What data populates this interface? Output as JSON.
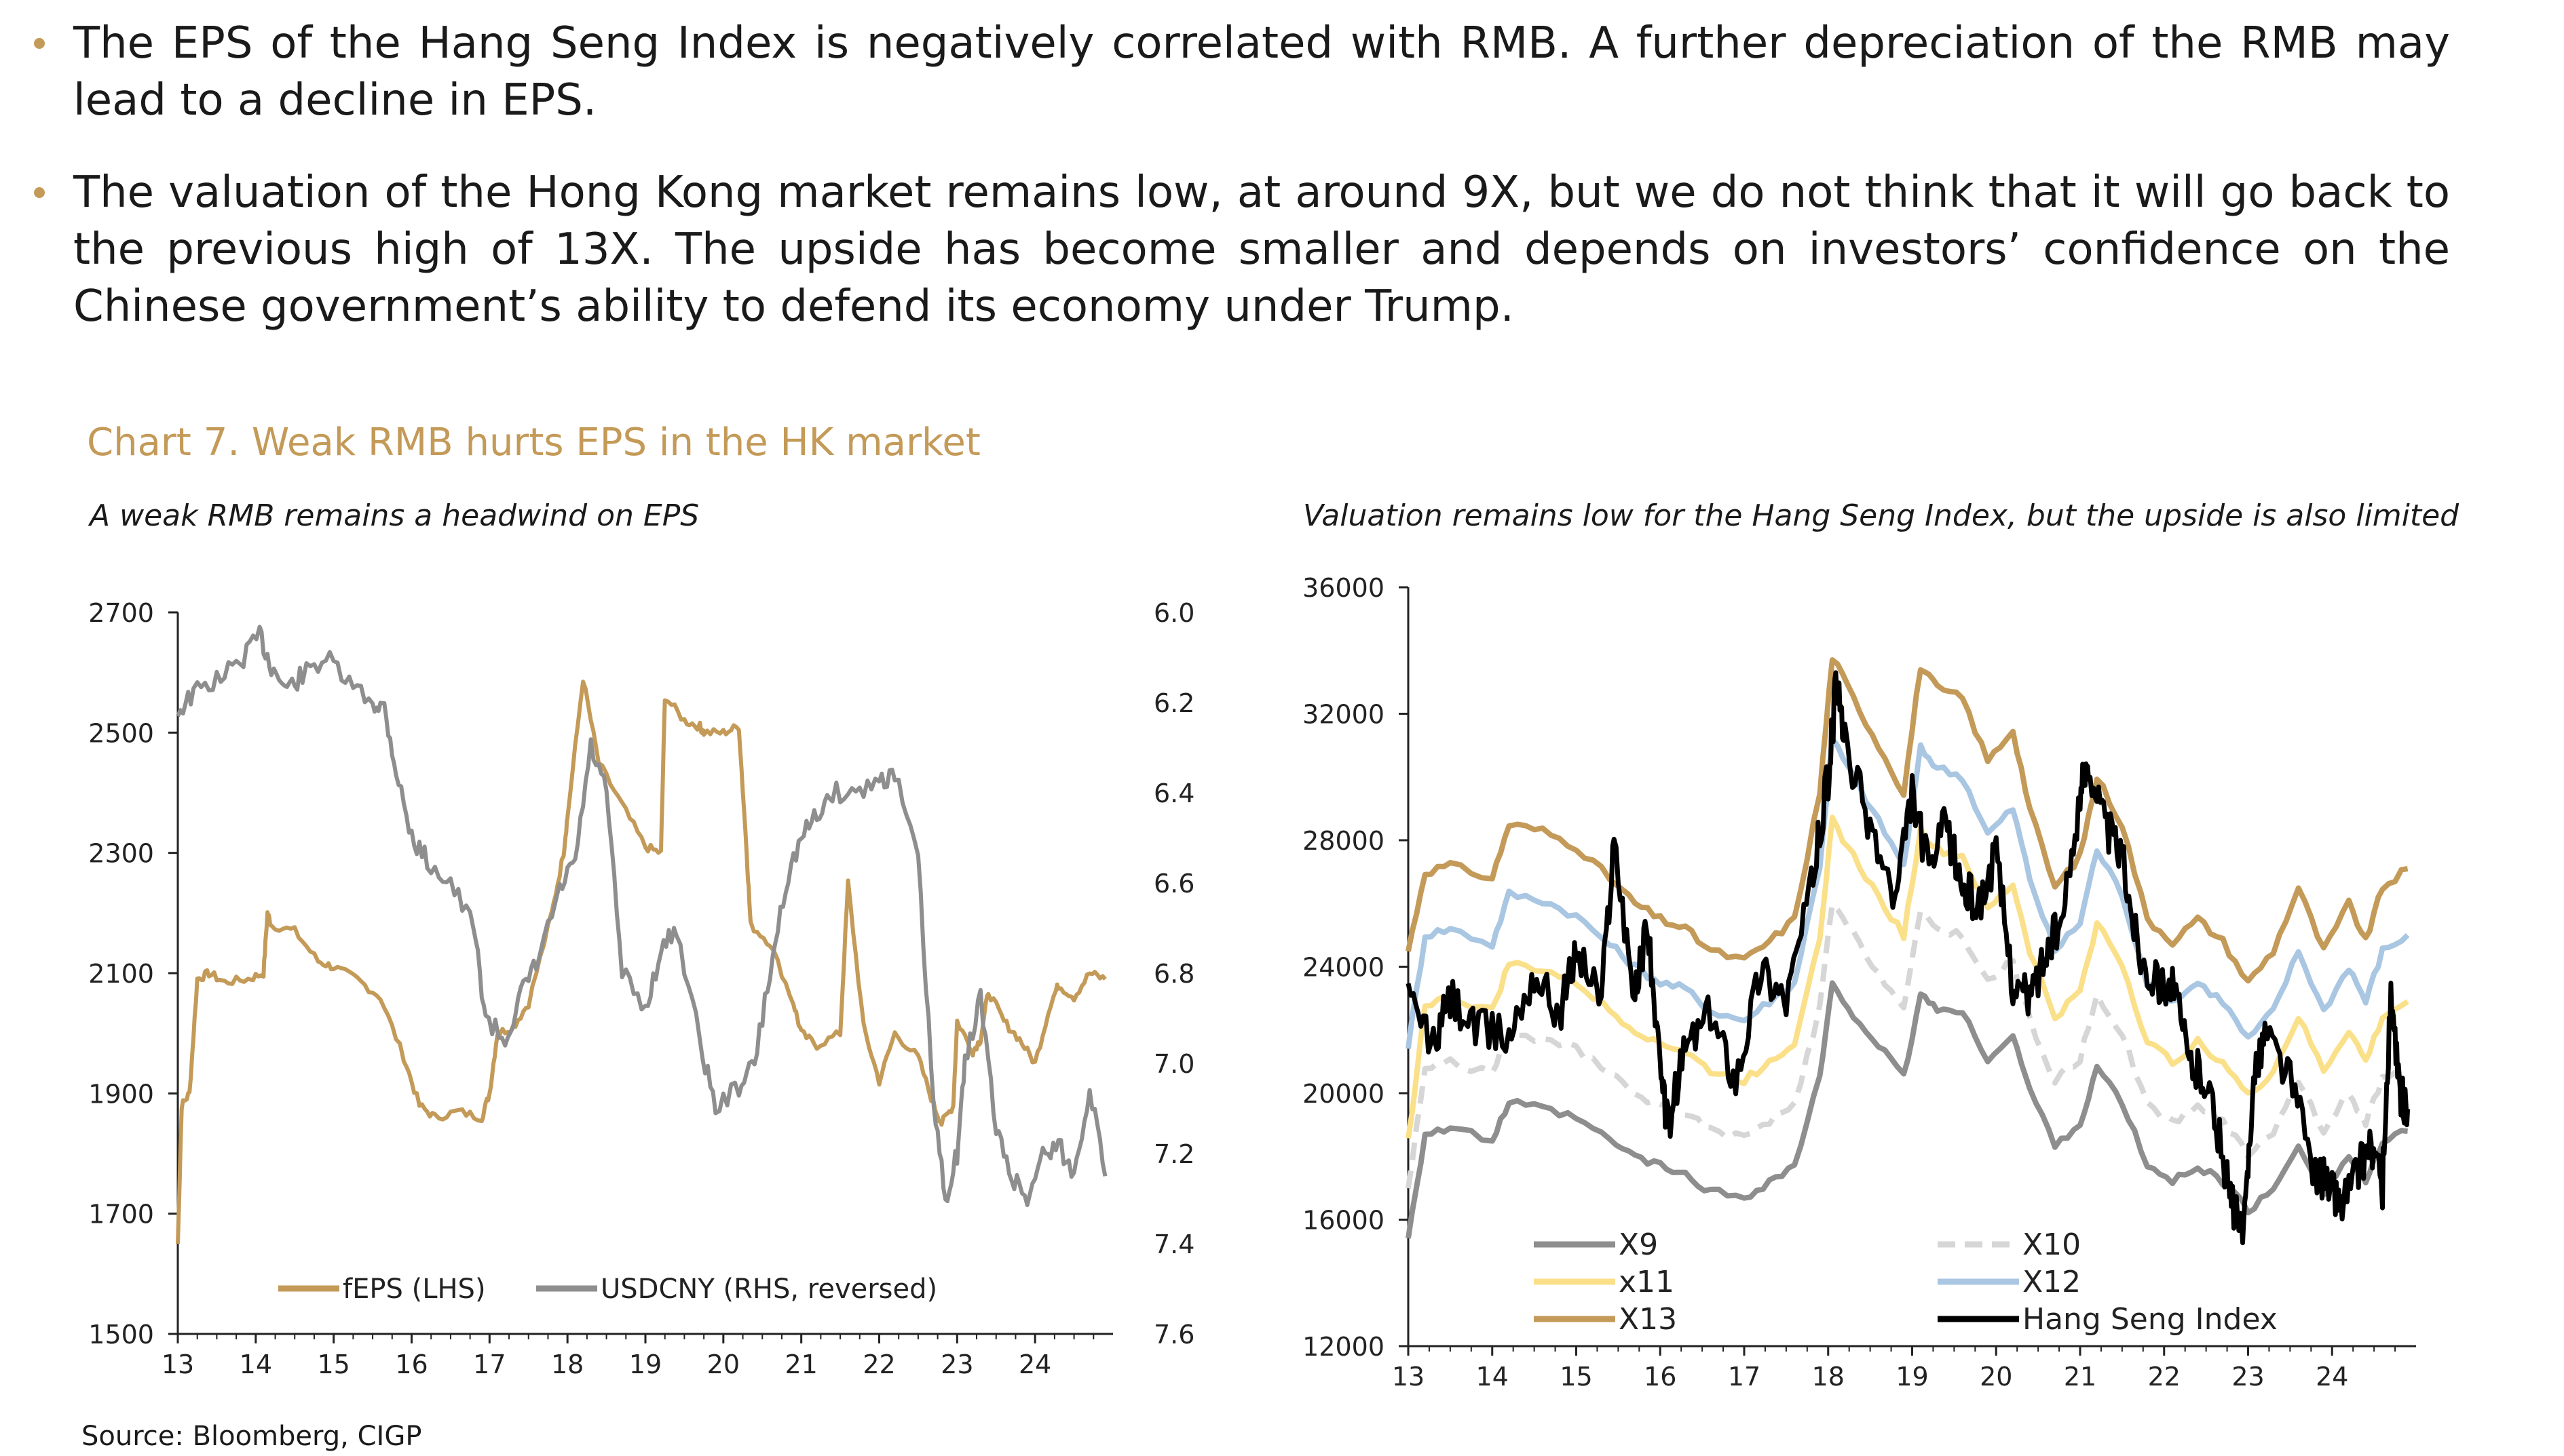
{
  "bullets": [
    "The EPS of the Hang Seng Index is negatively correlated with RMB. A further depreciation of the RMB may lead to a decline in EPS.",
    "The valuation of the Hong Kong market remains low, at around 9X, but we do not think that it will go back to the previous high of 13X. The upside has become smaller and depends on investors’ confidence on the Chinese government’s ability to defend its economy under Trump."
  ],
  "chart_title": "Chart 7. Weak RMB hurts EPS in the HK market",
  "source": "Source: Bloomberg, CIGP",
  "colors": {
    "accent": "#C49A58",
    "feps": "#C49A58",
    "usdcny": "#8E8E8E",
    "x9": "#8E8E8E",
    "x10": "#D6D6D6",
    "x11": "#FBE08A",
    "x12": "#A9C6E2",
    "x13": "#C49A58",
    "hsi": "#000000"
  },
  "chart_data": [
    {
      "type": "line",
      "title": "A weak RMB remains a headwind on EPS",
      "x_ticks": [
        "13",
        "14",
        "15",
        "16",
        "17",
        "18",
        "19",
        "20",
        "21",
        "22",
        "23",
        "24"
      ],
      "xlim": [
        2013.0,
        2025.0
      ],
      "ylim_left": [
        1500,
        2700
      ],
      "y_ticks_left": [
        "1500",
        "1700",
        "1900",
        "2100",
        "2300",
        "2500",
        "2700"
      ],
      "ylim_right": [
        7.6,
        6.0
      ],
      "y_right_reversed": true,
      "y_ticks_right": [
        "6.0",
        "6.2",
        "6.4",
        "6.6",
        "6.8",
        "7.0",
        "7.2",
        "7.4",
        "7.6"
      ],
      "legend": [
        "fEPS (LHS)",
        "USDCNY (RHS, reversed)"
      ],
      "series": [
        {
          "name": "fEPS (LHS)",
          "axis": "left",
          "x": [
            2013.0,
            2013.05,
            2013.15,
            2013.25,
            2013.4,
            2013.6,
            2013.9,
            2014.1,
            2014.15,
            2014.2,
            2014.5,
            2014.8,
            2015.0,
            2015.3,
            2015.6,
            2015.9,
            2016.1,
            2016.3,
            2016.6,
            2016.9,
            2017.0,
            2017.1,
            2017.3,
            2017.5,
            2017.8,
            2017.95,
            2018.0,
            2018.2,
            2018.4,
            2018.7,
            2019.0,
            2019.2,
            2019.25,
            2019.5,
            2019.7,
            2019.75,
            2020.0,
            2020.2,
            2020.3,
            2020.35,
            2020.6,
            2020.9,
            2021.0,
            2021.2,
            2021.5,
            2021.6,
            2021.8,
            2022.0,
            2022.2,
            2022.5,
            2022.7,
            2022.8,
            2022.95,
            2023.0,
            2023.2,
            2023.3,
            2023.4,
            2023.6,
            2023.8,
            2024.0,
            2024.2,
            2024.3,
            2024.5,
            2024.7,
            2024.9
          ],
          "y": [
            1650,
            1880,
            1900,
            2090,
            2100,
            2085,
            2090,
            2100,
            2200,
            2180,
            2170,
            2120,
            2110,
            2090,
            2060,
            1960,
            1880,
            1860,
            1870,
            1860,
            1900,
            2000,
            2010,
            2050,
            2200,
            2300,
            2360,
            2590,
            2450,
            2380,
            2310,
            2300,
            2560,
            2520,
            2510,
            2500,
            2500,
            2510,
            2300,
            2180,
            2150,
            2050,
            2000,
            1980,
            2000,
            2250,
            2010,
            1920,
            2000,
            1960,
            1880,
            1850,
            1880,
            2020,
            1970,
            1990,
            2070,
            2020,
            1990,
            1950,
            2050,
            2080,
            2060,
            2100,
            2090
          ]
        },
        {
          "name": "USDCNY (RHS, reversed)",
          "axis": "right",
          "x": [
            2013.0,
            2013.2,
            2013.5,
            2013.8,
            2014.05,
            2014.2,
            2014.4,
            2014.6,
            2014.9,
            2015.2,
            2015.5,
            2015.65,
            2015.8,
            2016.0,
            2016.2,
            2016.5,
            2016.8,
            2016.95,
            2017.2,
            2017.4,
            2017.6,
            2017.9,
            2018.1,
            2018.3,
            2018.5,
            2018.7,
            2019.0,
            2019.2,
            2019.4,
            2019.7,
            2019.9,
            2020.2,
            2020.4,
            2020.6,
            2020.8,
            2021.0,
            2021.2,
            2021.4,
            2021.7,
            2022.0,
            2022.2,
            2022.5,
            2022.7,
            2022.85,
            2023.0,
            2023.1,
            2023.3,
            2023.5,
            2023.7,
            2023.9,
            2024.1,
            2024.3,
            2024.5,
            2024.7,
            2024.9
          ],
          "y": [
            6.22,
            6.18,
            6.15,
            6.11,
            6.05,
            6.12,
            6.17,
            6.14,
            6.1,
            6.16,
            6.2,
            6.21,
            6.35,
            6.5,
            6.55,
            6.6,
            6.7,
            6.9,
            6.95,
            6.85,
            6.78,
            6.62,
            6.55,
            6.3,
            6.4,
            6.8,
            6.88,
            6.75,
            6.7,
            6.95,
            7.1,
            7.05,
            7.0,
            6.8,
            6.6,
            6.5,
            6.45,
            6.4,
            6.4,
            6.37,
            6.36,
            6.55,
            7.1,
            7.3,
            7.2,
            7.0,
            6.85,
            7.15,
            7.25,
            7.3,
            7.2,
            7.18,
            7.25,
            7.05,
            7.25
          ]
        }
      ]
    },
    {
      "type": "line",
      "title": "Valuation remains low for the Hang Seng Index, but the upside is also limited",
      "x_ticks": [
        "13",
        "14",
        "15",
        "16",
        "17",
        "18",
        "19",
        "20",
        "21",
        "22",
        "23",
        "24"
      ],
      "xlim": [
        2013.0,
        2025.0
      ],
      "ylim": [
        12000,
        36000
      ],
      "y_ticks": [
        "12000",
        "16000",
        "20000",
        "24000",
        "28000",
        "32000",
        "36000"
      ],
      "legend": [
        "X9",
        "X10",
        "x11",
        "X12",
        "X13",
        "Hang Seng Index"
      ],
      "series": [
        {
          "name": "X13",
          "x": [
            2013.0,
            2013.2,
            2013.5,
            2014.0,
            2014.2,
            2014.6,
            2015.0,
            2015.4,
            2015.7,
            2016.0,
            2016.3,
            2016.6,
            2017.0,
            2017.3,
            2017.6,
            2017.9,
            2018.05,
            2018.3,
            2018.6,
            2018.9,
            2019.1,
            2019.3,
            2019.6,
            2019.9,
            2020.2,
            2020.4,
            2020.7,
            2021.0,
            2021.2,
            2021.5,
            2021.8,
            2022.1,
            2022.4,
            2022.7,
            2023.0,
            2023.3,
            2023.6,
            2023.9,
            2024.2,
            2024.4,
            2024.6,
            2024.9
          ],
          "y": [
            24500,
            27000,
            27200,
            26800,
            28500,
            28300,
            27800,
            26800,
            26000,
            25500,
            25200,
            24500,
            24200,
            24800,
            25500,
            29500,
            33800,
            32500,
            31000,
            29500,
            33500,
            32800,
            32500,
            30500,
            31500,
            29000,
            26500,
            27500,
            30000,
            28500,
            25500,
            24800,
            25500,
            24800,
            23500,
            24500,
            26500,
            24500,
            26000,
            24800,
            26500,
            27100
          ]
        },
        {
          "name": "X12",
          "x": [
            2013.0,
            2013.2,
            2013.5,
            2014.0,
            2014.2,
            2014.6,
            2015.0,
            2015.4,
            2015.7,
            2016.0,
            2016.3,
            2016.6,
            2017.0,
            2017.3,
            2017.6,
            2017.9,
            2018.05,
            2018.3,
            2018.6,
            2018.9,
            2019.1,
            2019.3,
            2019.6,
            2019.9,
            2020.2,
            2020.4,
            2020.7,
            2021.0,
            2021.2,
            2021.5,
            2021.8,
            2022.1,
            2022.4,
            2022.7,
            2023.0,
            2023.3,
            2023.6,
            2023.9,
            2024.2,
            2024.4,
            2024.6,
            2024.9
          ],
          "y": [
            21500,
            25000,
            25200,
            24700,
            26300,
            26100,
            25600,
            24700,
            24000,
            23500,
            23300,
            22600,
            22300,
            22900,
            23500,
            27200,
            31200,
            30000,
            28600,
            27200,
            30900,
            30300,
            30000,
            28200,
            29000,
            26800,
            24500,
            25400,
            27700,
            26300,
            23500,
            22900,
            23500,
            22900,
            21700,
            22600,
            24500,
            22600,
            24000,
            22900,
            24500,
            25000
          ]
        },
        {
          "name": "x11",
          "x": [
            2013.0,
            2013.2,
            2013.5,
            2014.0,
            2014.2,
            2014.6,
            2015.0,
            2015.4,
            2015.7,
            2016.0,
            2016.3,
            2016.6,
            2017.0,
            2017.3,
            2017.6,
            2017.9,
            2018.05,
            2018.3,
            2018.6,
            2018.9,
            2019.1,
            2019.3,
            2019.6,
            2019.9,
            2020.2,
            2020.4,
            2020.7,
            2021.0,
            2021.2,
            2021.5,
            2021.8,
            2022.1,
            2022.4,
            2022.7,
            2023.0,
            2023.3,
            2023.6,
            2023.9,
            2024.2,
            2024.4,
            2024.6,
            2024.9
          ],
          "y": [
            18500,
            22800,
            23000,
            22600,
            24100,
            23900,
            23500,
            22600,
            22000,
            21600,
            21300,
            20700,
            20400,
            21000,
            21600,
            25000,
            28600,
            27500,
            26200,
            25000,
            28300,
            27700,
            27500,
            25800,
            26600,
            24500,
            22400,
            23200,
            25400,
            24100,
            21600,
            21000,
            21600,
            21000,
            19900,
            20700,
            22400,
            20700,
            22000,
            21000,
            22400,
            22900
          ]
        },
        {
          "name": "X10",
          "x": [
            2013.0,
            2013.2,
            2013.5,
            2014.0,
            2014.2,
            2014.6,
            2015.0,
            2015.4,
            2015.7,
            2016.0,
            2016.3,
            2016.6,
            2017.0,
            2017.3,
            2017.6,
            2017.9,
            2018.05,
            2018.3,
            2018.6,
            2018.9,
            2019.1,
            2019.3,
            2019.6,
            2019.9,
            2020.2,
            2020.4,
            2020.7,
            2021.0,
            2021.2,
            2021.5,
            2021.8,
            2022.1,
            2022.4,
            2022.7,
            2023.0,
            2023.3,
            2023.6,
            2023.9,
            2024.2,
            2024.4,
            2024.6,
            2024.9
          ],
          "y": [
            17000,
            20800,
            21000,
            20600,
            21900,
            21700,
            21400,
            20600,
            20000,
            19600,
            19400,
            18800,
            18600,
            19100,
            19600,
            22700,
            26000,
            25000,
            23800,
            22700,
            25700,
            25200,
            25000,
            23500,
            24200,
            22300,
            20400,
            21100,
            23100,
            21900,
            19600,
            19100,
            19600,
            19100,
            18100,
            18800,
            20400,
            18800,
            20000,
            19100,
            20400,
            20800
          ]
        },
        {
          "name": "X9",
          "x": [
            2013.0,
            2013.2,
            2013.5,
            2014.0,
            2014.2,
            2014.6,
            2015.0,
            2015.4,
            2015.7,
            2016.0,
            2016.3,
            2016.6,
            2017.0,
            2017.3,
            2017.6,
            2017.9,
            2018.05,
            2018.3,
            2018.6,
            2018.9,
            2019.1,
            2019.3,
            2019.6,
            2019.9,
            2020.2,
            2020.4,
            2020.7,
            2021.0,
            2021.2,
            2021.5,
            2021.8,
            2022.1,
            2022.4,
            2022.7,
            2023.0,
            2023.3,
            2023.6,
            2023.9,
            2024.2,
            2024.4,
            2024.6,
            2024.9
          ],
          "y": [
            15500,
            18700,
            18900,
            18500,
            19700,
            19500,
            19200,
            18500,
            18000,
            17700,
            17400,
            16900,
            16700,
            17200,
            17700,
            20500,
            23400,
            22500,
            21500,
            20500,
            23100,
            22700,
            22500,
            21100,
            21800,
            20100,
            18400,
            19000,
            20800,
            19700,
            17700,
            17200,
            17700,
            17200,
            16300,
            16900,
            18400,
            16900,
            18000,
            17200,
            18400,
            18800
          ]
        },
        {
          "name": "Hang Seng Index",
          "x": [
            2013.0,
            2013.3,
            2013.5,
            2013.8,
            2014.2,
            2014.5,
            2014.8,
            2015.0,
            2015.3,
            2015.45,
            2015.7,
            2015.85,
            2016.0,
            2016.1,
            2016.3,
            2016.6,
            2016.9,
            2017.2,
            2017.5,
            2017.8,
            2018.0,
            2018.1,
            2018.2,
            2018.5,
            2018.8,
            2019.0,
            2019.2,
            2019.4,
            2019.6,
            2019.8,
            2020.0,
            2020.2,
            2020.4,
            2020.6,
            2020.8,
            2021.0,
            2021.1,
            2021.3,
            2021.5,
            2021.7,
            2021.9,
            2022.1,
            2022.3,
            2022.5,
            2022.7,
            2022.8,
            2022.95,
            2023.05,
            2023.2,
            2023.5,
            2023.8,
            2024.0,
            2024.1,
            2024.3,
            2024.45,
            2024.6,
            2024.7,
            2024.8,
            2024.9
          ],
          "y": [
            23000,
            21500,
            23000,
            22000,
            21800,
            23800,
            22500,
            24500,
            23000,
            28000,
            23000,
            25500,
            20500,
            19000,
            21500,
            22500,
            20500,
            24000,
            23000,
            26500,
            30000,
            33000,
            31000,
            28500,
            26000,
            29500,
            27000,
            28500,
            26500,
            26000,
            27500,
            23500,
            23000,
            24500,
            25500,
            29500,
            30500,
            28500,
            27500,
            24500,
            23500,
            23500,
            21000,
            20500,
            18000,
            16500,
            15500,
            20000,
            22000,
            20500,
            17500,
            17000,
            16500,
            17500,
            18500,
            17000,
            23000,
            20000,
            19500
          ]
        }
      ]
    }
  ]
}
